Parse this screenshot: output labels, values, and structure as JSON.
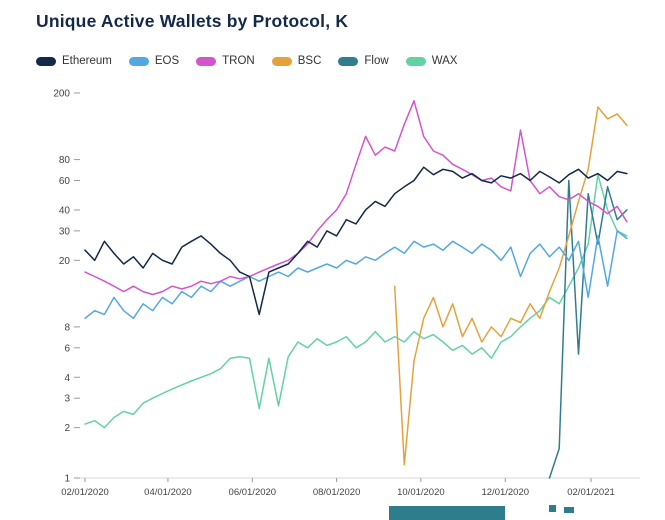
{
  "title": "Unique Active Wallets by Protocol, K",
  "legend": {
    "items": [
      {
        "label": "Ethereum",
        "color": "#12294a"
      },
      {
        "label": "EOS",
        "color": "#54a8e0"
      },
      {
        "label": "TRON",
        "color": "#d355ce"
      },
      {
        "label": "BSC",
        "color": "#e4a23c"
      },
      {
        "label": "Flow",
        "color": "#2f7d8e"
      },
      {
        "label": "WAX",
        "color": "#62d2a4"
      }
    ]
  },
  "style": {
    "title_color": "#14294a",
    "axis_line_color": "#d9d9d9",
    "tick_color": "#9b9b9b",
    "tick_label_color": "#444444",
    "background": "#ffffff",
    "watermark_color": "#2d7d8d"
  },
  "chart_data": {
    "type": "line",
    "title": "Unique Active Wallets by Protocol, K",
    "x_unit": "weeks since 02/01/2020",
    "y_scale": "log",
    "ylim": [
      1,
      200
    ],
    "grid": false,
    "legend_position": "top-left",
    "y_ticks": [
      200,
      80,
      60,
      40,
      30,
      20,
      8,
      6,
      4,
      3,
      2,
      1
    ],
    "x_ticks": [
      {
        "pos": 0,
        "label": "02/01/2020"
      },
      {
        "pos": 8.57,
        "label": "04/01/2020"
      },
      {
        "pos": 17.29,
        "label": "06/01/2020"
      },
      {
        "pos": 26,
        "label": "08/01/2020"
      },
      {
        "pos": 34.71,
        "label": "10/01/2020"
      },
      {
        "pos": 43.43,
        "label": "12/01/2020"
      },
      {
        "pos": 52.29,
        "label": "02/01/2021"
      }
    ],
    "series": [
      {
        "name": "WAX",
        "color": "#62d2a4",
        "values": [
          2.1,
          2.2,
          2.0,
          2.3,
          2.5,
          2.4,
          2.8,
          3.0,
          3.2,
          3.4,
          3.6,
          3.8,
          4.0,
          4.2,
          4.5,
          5.2,
          5.3,
          5.2,
          2.6,
          5.2,
          2.7,
          5.3,
          6.5,
          6.0,
          6.8,
          6.2,
          6.5,
          7.0,
          6.0,
          6.5,
          7.5,
          6.5,
          7.0,
          6.5,
          7.5,
          6.8,
          7.2,
          6.5,
          5.8,
          6.2,
          5.5,
          6.0,
          5.2,
          6.5,
          7.0,
          8.0,
          9.0,
          10,
          12,
          11,
          14,
          18,
          25,
          65,
          40,
          30,
          28
        ]
      },
      {
        "name": "Flow",
        "color": "#2f7d8e",
        "values": [
          null,
          null,
          null,
          null,
          null,
          null,
          null,
          null,
          null,
          null,
          null,
          null,
          null,
          null,
          null,
          null,
          null,
          null,
          null,
          null,
          null,
          null,
          null,
          null,
          null,
          null,
          null,
          null,
          null,
          null,
          null,
          null,
          null,
          null,
          null,
          null,
          null,
          null,
          null,
          null,
          null,
          null,
          null,
          null,
          null,
          null,
          null,
          null,
          1,
          1.5,
          60,
          5.5,
          50,
          25,
          55,
          35,
          40
        ]
      },
      {
        "name": "BSC",
        "color": "#e4a23c",
        "values": [
          null,
          null,
          null,
          null,
          null,
          null,
          null,
          null,
          null,
          null,
          null,
          null,
          null,
          null,
          null,
          null,
          null,
          null,
          null,
          null,
          null,
          null,
          null,
          null,
          null,
          null,
          null,
          null,
          null,
          null,
          null,
          null,
          14,
          1.2,
          5,
          9,
          12,
          8,
          11,
          7,
          9,
          6.5,
          8,
          7,
          9,
          8.5,
          11,
          9,
          13,
          18,
          28,
          45,
          70,
          165,
          140,
          150,
          128
        ]
      },
      {
        "name": "EOS",
        "color": "#54a8e0",
        "values": [
          9,
          10,
          9.5,
          12,
          10,
          9,
          11,
          10,
          12,
          11,
          13,
          12,
          14,
          13,
          15,
          14,
          15,
          16,
          15,
          16,
          17,
          16,
          18,
          17,
          18,
          19,
          18,
          20,
          19,
          21,
          20,
          22,
          24,
          22,
          26,
          24,
          25,
          23,
          26,
          24,
          22,
          25,
          23,
          20,
          24,
          16,
          22,
          25,
          21,
          24,
          20,
          26,
          12,
          28,
          14,
          30,
          27
        ]
      },
      {
        "name": "TRON",
        "color": "#d355ce",
        "values": [
          17,
          16,
          15,
          14,
          13,
          14,
          13,
          12.5,
          13,
          14,
          13.5,
          14,
          15,
          14.5,
          15,
          16,
          15.5,
          16,
          17,
          18,
          19,
          20,
          22,
          25,
          30,
          35,
          40,
          50,
          75,
          110,
          85,
          95,
          90,
          130,
          180,
          110,
          90,
          85,
          75,
          70,
          65,
          60,
          62,
          55,
          52,
          120,
          60,
          50,
          55,
          48,
          46,
          50,
          45,
          42,
          38,
          42,
          34
        ]
      },
      {
        "name": "Ethereum",
        "color": "#12294a",
        "values": [
          23,
          20,
          26,
          22,
          19,
          21,
          18,
          22,
          20,
          19,
          24,
          26,
          28,
          25,
          22,
          20,
          17,
          16,
          9.5,
          17,
          18,
          19,
          22,
          26,
          24,
          30,
          28,
          35,
          33,
          40,
          45,
          42,
          50,
          55,
          60,
          72,
          65,
          70,
          68,
          62,
          66,
          60,
          58,
          64,
          62,
          66,
          60,
          68,
          63,
          58,
          65,
          70,
          62,
          66,
          60,
          68,
          66
        ]
      }
    ]
  }
}
